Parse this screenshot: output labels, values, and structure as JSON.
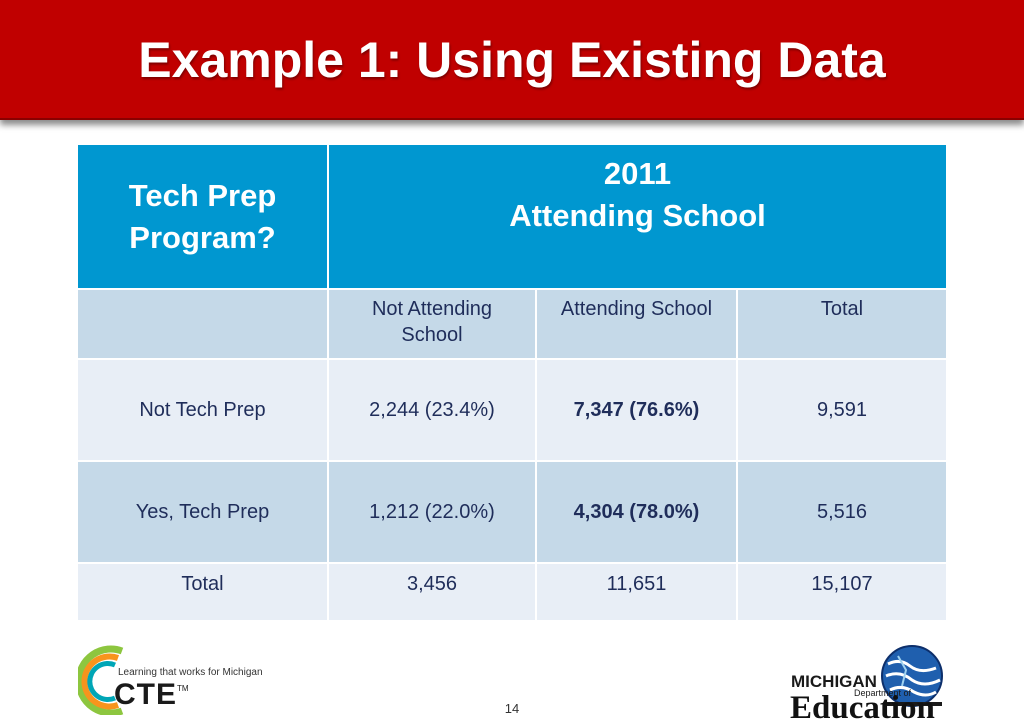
{
  "slide": {
    "title": "Example 1: Using Existing Data",
    "page_number": "14"
  },
  "table": {
    "corner_header_lines": [
      "Tech Prep",
      "Program?"
    ],
    "group_header_lines": [
      "2011",
      "Attending School"
    ],
    "sub_header": {
      "blank": "",
      "col1_lines": [
        "Not Attending",
        "School"
      ],
      "col2": "Attending School",
      "col3": "Total"
    },
    "rows": [
      {
        "label": "Not Tech Prep",
        "not_attending": "2,244 (23.4%)",
        "attending": "7,347 (76.6%)",
        "total": "9,591"
      },
      {
        "label": "Yes, Tech Prep",
        "not_attending": "1,212 (22.0%)",
        "attending": "4,304 (78.0%)",
        "total": "5,516"
      },
      {
        "label": "Total",
        "not_attending": "3,456",
        "attending": "11,651",
        "total": "15,107"
      }
    ]
  },
  "logos": {
    "cte_tagline": "Learning that works for Michigan",
    "cte_word": "CTE",
    "cte_tm": "TM",
    "mde_state": "MICHIGAN",
    "mde_dept": "Department of",
    "mde_word": "Education"
  },
  "colors": {
    "title_bar": "#c00000",
    "header_blue": "#0097d0",
    "row_dark": "#c5d9e8",
    "row_light": "#e8eef6",
    "text_navy": "#1f2d5a"
  }
}
